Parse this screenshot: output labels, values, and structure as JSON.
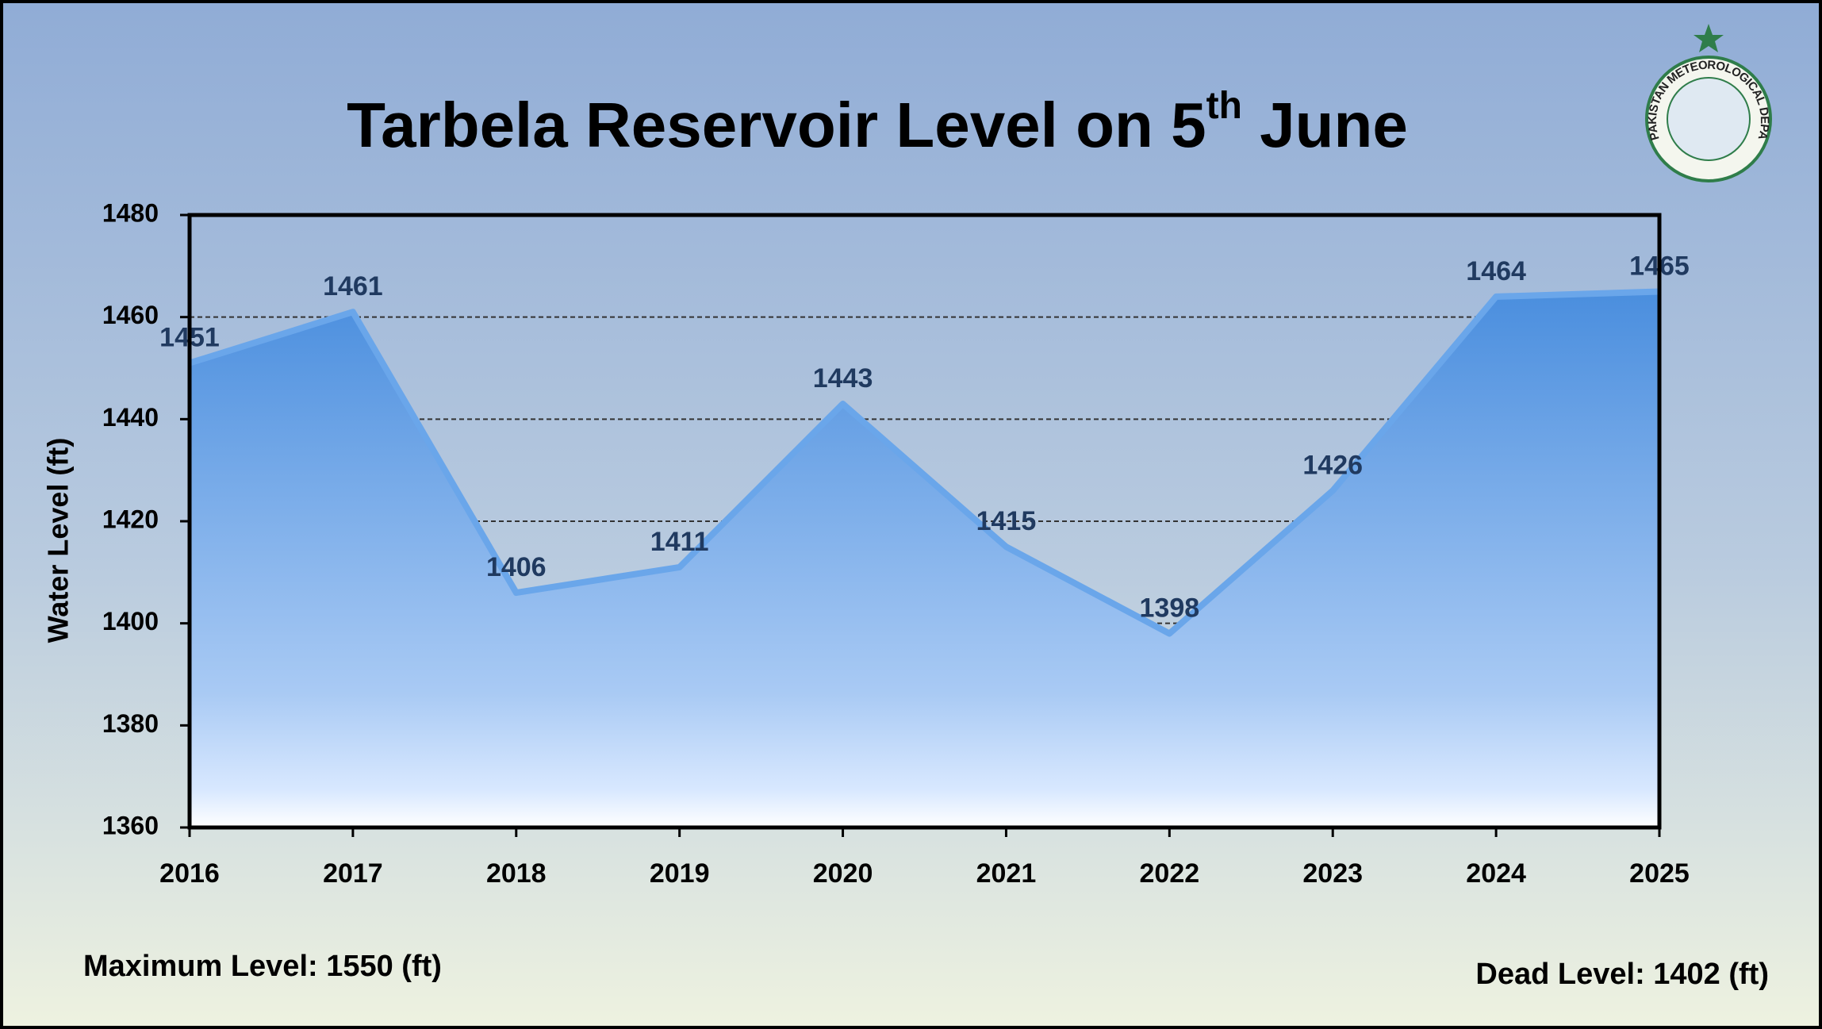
{
  "chart_data": {
    "type": "area",
    "title": [
      "Tarbela Reservoir Level on 5",
      "th",
      " June"
    ],
    "y_label": "Water Level (ft)",
    "categories": [
      "2016",
      "2017",
      "2018",
      "2019",
      "2020",
      "2021",
      "2022",
      "2023",
      "2024",
      "2025"
    ],
    "values": [
      1451,
      1461,
      1406,
      1411,
      1443,
      1415,
      1398,
      1426,
      1464,
      1465
    ],
    "color": "#4a8ede",
    "ylim": [
      1360,
      1480
    ],
    "yticks": [
      1360,
      1380,
      1400,
      1420,
      1440,
      1460,
      1480
    ],
    "grid": true,
    "notes": [
      "Maximum Level: 1550 (ft)",
      "Dead Level: 1402 (ft)"
    ],
    "logo_text": "PAKISTAN METEOROLOGICAL DEPARTMENT"
  }
}
